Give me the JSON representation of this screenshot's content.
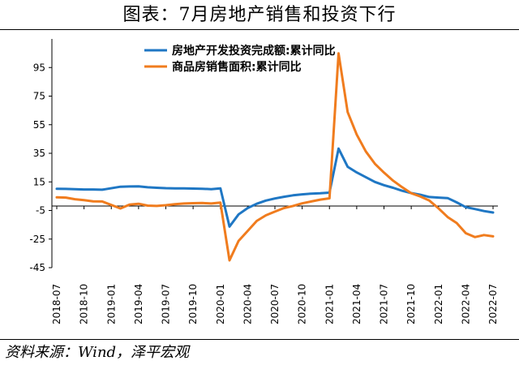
{
  "title": "图表：7月房地产销售和投资下行",
  "source": "资料来源：Wind，泽平宏观",
  "colors": {
    "series_investment": "#1f77c4",
    "series_sales": "#f07c1e"
  },
  "chart_data": {
    "type": "line",
    "legend_placement": "top-center",
    "grid": false,
    "ylim": [
      -45,
      115
    ],
    "yticks": [
      -45,
      -25,
      -5,
      15,
      35,
      55,
      75,
      95
    ],
    "x_start": "2018-07",
    "x_end": "2022-07",
    "xticks": [
      "2018-07",
      "2018-10",
      "2019-01",
      "2019-04",
      "2019-07",
      "2019-10",
      "2020-01",
      "2020-04",
      "2020-07",
      "2020-10",
      "2021-01",
      "2021-04",
      "2021-07",
      "2021-10",
      "2022-01",
      "2022-04",
      "2022-07"
    ],
    "series": [
      {
        "name": "房地产开发投资完成额:累计同比",
        "color": "#1f77c4",
        "points": [
          [
            "2018-07",
            10.2
          ],
          [
            "2018-08",
            10.1
          ],
          [
            "2018-09",
            9.9
          ],
          [
            "2018-10",
            9.7
          ],
          [
            "2018-11",
            9.7
          ],
          [
            "2018-12",
            9.5
          ],
          [
            "2019-02",
            11.6
          ],
          [
            "2019-03",
            11.8
          ],
          [
            "2019-04",
            11.9
          ],
          [
            "2019-05",
            11.2
          ],
          [
            "2019-06",
            10.9
          ],
          [
            "2019-07",
            10.6
          ],
          [
            "2019-08",
            10.5
          ],
          [
            "2019-09",
            10.5
          ],
          [
            "2019-10",
            10.3
          ],
          [
            "2019-11",
            10.2
          ],
          [
            "2019-12",
            9.9
          ],
          [
            "2020-01",
            10.5
          ],
          [
            "2020-02",
            -16.3
          ],
          [
            "2020-03",
            -7.7
          ],
          [
            "2020-04",
            -3.3
          ],
          [
            "2020-05",
            -0.3
          ],
          [
            "2020-06",
            1.9
          ],
          [
            "2020-07",
            3.4
          ],
          [
            "2020-08",
            4.6
          ],
          [
            "2020-09",
            5.6
          ],
          [
            "2020-10",
            6.3
          ],
          [
            "2020-11",
            6.8
          ],
          [
            "2020-12",
            7.0
          ],
          [
            "2021-01",
            7.5
          ],
          [
            "2021-02",
            38.3
          ],
          [
            "2021-03",
            25.6
          ],
          [
            "2021-04",
            21.6
          ],
          [
            "2021-05",
            18.3
          ],
          [
            "2021-06",
            15.0
          ],
          [
            "2021-07",
            12.7
          ],
          [
            "2021-08",
            10.9
          ],
          [
            "2021-09",
            8.8
          ],
          [
            "2021-10",
            7.2
          ],
          [
            "2021-11",
            6.0
          ],
          [
            "2021-12",
            4.4
          ],
          [
            "2022-01",
            4.0
          ],
          [
            "2022-02",
            3.7
          ],
          [
            "2022-03",
            0.7
          ],
          [
            "2022-04",
            -2.7
          ],
          [
            "2022-05",
            -4.0
          ],
          [
            "2022-06",
            -5.4
          ],
          [
            "2022-07",
            -6.4
          ]
        ]
      },
      {
        "name": "商品房销售面积:累计同比",
        "color": "#f07c1e",
        "points": [
          [
            "2018-07",
            4.2
          ],
          [
            "2018-08",
            4.0
          ],
          [
            "2018-09",
            2.9
          ],
          [
            "2018-10",
            2.2
          ],
          [
            "2018-11",
            1.4
          ],
          [
            "2018-12",
            1.3
          ],
          [
            "2019-02",
            -3.6
          ],
          [
            "2019-03",
            -0.9
          ],
          [
            "2019-04",
            -0.3
          ],
          [
            "2019-05",
            -1.6
          ],
          [
            "2019-06",
            -1.8
          ],
          [
            "2019-07",
            -1.3
          ],
          [
            "2019-08",
            -0.6
          ],
          [
            "2019-09",
            -0.1
          ],
          [
            "2019-10",
            0.1
          ],
          [
            "2019-11",
            0.2
          ],
          [
            "2019-12",
            -0.1
          ],
          [
            "2020-01",
            0.5
          ],
          [
            "2020-02",
            -39.9
          ],
          [
            "2020-03",
            -26.3
          ],
          [
            "2020-04",
            -19.3
          ],
          [
            "2020-05",
            -12.3
          ],
          [
            "2020-06",
            -8.4
          ],
          [
            "2020-07",
            -5.8
          ],
          [
            "2020-08",
            -3.3
          ],
          [
            "2020-09",
            -1.8
          ],
          [
            "2020-10",
            0.0
          ],
          [
            "2020-11",
            1.3
          ],
          [
            "2020-12",
            2.6
          ],
          [
            "2021-01",
            3.5
          ],
          [
            "2021-02",
            104.9
          ],
          [
            "2021-03",
            63.8
          ],
          [
            "2021-04",
            48.1
          ],
          [
            "2021-05",
            36.3
          ],
          [
            "2021-06",
            27.7
          ],
          [
            "2021-07",
            21.5
          ],
          [
            "2021-08",
            15.9
          ],
          [
            "2021-09",
            11.3
          ],
          [
            "2021-10",
            7.1
          ],
          [
            "2021-11",
            4.8
          ],
          [
            "2021-12",
            1.9
          ],
          [
            "2022-01",
            -3.5
          ],
          [
            "2022-02",
            -9.6
          ],
          [
            "2022-03",
            -13.8
          ],
          [
            "2022-04",
            -20.9
          ],
          [
            "2022-05",
            -23.6
          ],
          [
            "2022-06",
            -22.2
          ],
          [
            "2022-07",
            -23.1
          ]
        ]
      }
    ]
  }
}
